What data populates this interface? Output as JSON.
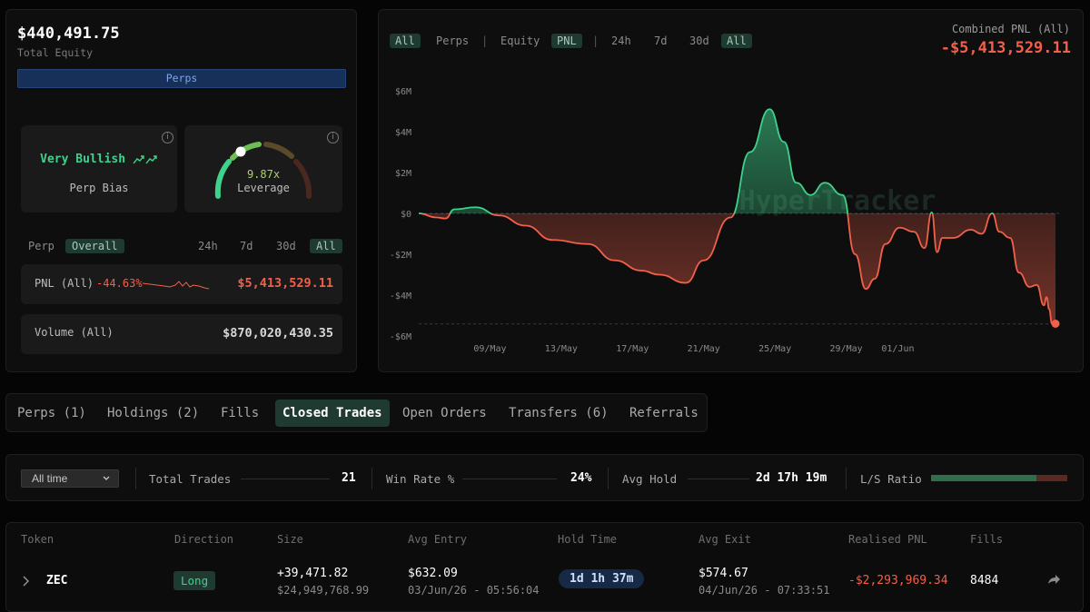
{
  "summary": {
    "total_equity_value": "$440,491.75",
    "total_equity_label": "Total Equity",
    "perps_bar_label": "Perps"
  },
  "bias": {
    "title": "Very Bullish",
    "label": "Perp Bias"
  },
  "leverage": {
    "value": "9.87x",
    "label": "Leverage",
    "level_fraction": 0.33
  },
  "stats_tabs": {
    "left": [
      "Perp",
      "Overall"
    ],
    "active_left": "Overall",
    "ranges": [
      "24h",
      "7d",
      "30d",
      "All"
    ],
    "active_range": "All"
  },
  "pnl_row": {
    "label": "PNL (All)",
    "pct": "-44.63%",
    "value": "$5,413,529.11"
  },
  "volume_row": {
    "label": "Volume (All)",
    "value": "$870,020,430.35"
  },
  "chart_controls": {
    "type_tabs": [
      "All",
      "Perps",
      "Equity",
      "PNL"
    ],
    "active_type": [
      "All",
      "PNL"
    ],
    "range_tabs": [
      "24h",
      "7d",
      "30d",
      "All"
    ],
    "active_range": "All",
    "separator": "|"
  },
  "chart_header": {
    "label": "Combined PNL (All)",
    "value": "-$5,413,529.11"
  },
  "chart_data": {
    "type": "area",
    "watermark": "HyperTracker",
    "yticks": [
      "$6M",
      "$4M",
      "$2M",
      "$0",
      "-$2M",
      "-$4M",
      "-$6M"
    ],
    "xticks": [
      "09/May",
      "13/May",
      "17/May",
      "21/May",
      "25/May",
      "29/May",
      "01/Jun"
    ],
    "ylim": [
      -6000000,
      6000000
    ],
    "x": [
      0,
      1,
      1.5,
      2,
      3.2,
      4.5,
      6,
      7.5,
      9.5,
      11,
      12.5,
      13.5,
      15,
      16,
      17.5,
      18.6,
      19.7,
      20.5,
      21.2,
      22,
      22.8,
      23.8,
      24.5,
      25.1,
      25.6,
      26.2,
      27,
      27.8,
      28.4,
      28.8,
      29.1,
      29.4,
      30,
      31,
      31.6,
      32.2,
      32.6,
      33.2,
      33.7,
      34.3,
      34.7,
      35.1,
      35.25,
      35.4,
      35.55,
      35.75
    ],
    "values": [
      0,
      -0.2,
      -0.25,
      0.2,
      0.3,
      -0.1,
      -0.6,
      -1.3,
      -1.5,
      -2.3,
      -2.8,
      -3.0,
      -3.4,
      -2.3,
      -0.2,
      3.0,
      5.1,
      3.5,
      1.5,
      0.9,
      1.5,
      0.9,
      -2.0,
      -3.7,
      -3.2,
      -1.5,
      -0.7,
      -0.9,
      -1.7,
      0.05,
      -1.9,
      -1.2,
      -1.2,
      -0.8,
      -1.0,
      0,
      -0.9,
      -1.2,
      -2.9,
      -3.6,
      -3.5,
      -4.5,
      -4.1,
      -4.7,
      -5.4,
      -5.4
    ],
    "last_point": -5.41,
    "zero_label": "$0"
  },
  "tabs": [
    "Perps (1)",
    "Holdings (2)",
    "Fills",
    "Closed Trades",
    "Open Orders",
    "Transfers (6)",
    "Referrals"
  ],
  "active_tab": "Closed Trades",
  "filter": {
    "dropdown": "All time",
    "total_trades_label": "Total Trades",
    "total_trades_value": "21",
    "win_rate_label": "Win Rate %",
    "win_rate_value": "24%",
    "avg_hold_label": "Avg Hold",
    "avg_hold_value": "2d 17h 19m",
    "ls_ratio_label": "L/S Ratio",
    "ls_long_fraction": 0.77
  },
  "colors": {
    "green": "#3fd28c",
    "red": "#f2604a",
    "accent_pill": "#1f3a30",
    "blue_bar": "#17305a"
  },
  "table": {
    "headers": [
      "Token",
      "Direction",
      "Size",
      "Avg Entry",
      "Hold Time",
      "Avg Exit",
      "Realised PNL",
      "Fills"
    ],
    "row": {
      "token": "ZEC",
      "direction": "Long",
      "size": "+39,471.82",
      "size_usd": "$24,949,768.99",
      "avg_entry": "$632.09",
      "entry_time": "03/Jun/26 - 05:56:04",
      "hold_time": "1d 1h 37m",
      "avg_exit": "$574.67",
      "exit_time": "04/Jun/26 - 07:33:51",
      "realised_pnl": "-$2,293,969.34",
      "fills": "8484"
    }
  }
}
